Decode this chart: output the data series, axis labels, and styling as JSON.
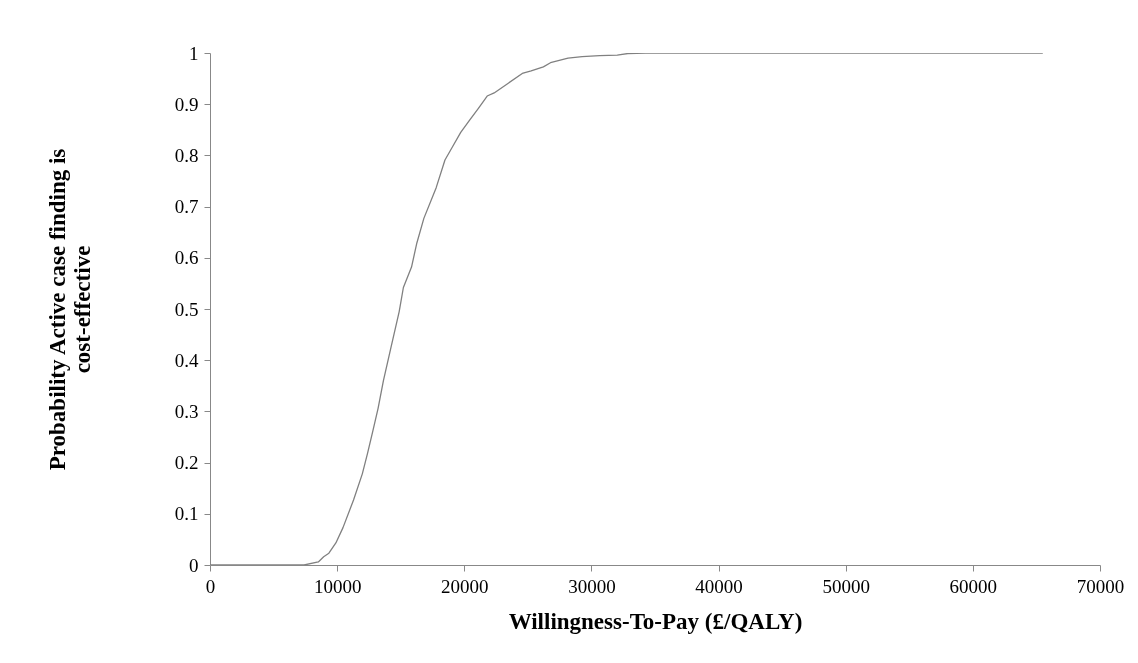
{
  "chart_data": {
    "type": "line",
    "xlabel": "Willingness-To-Pay (£/QALY)",
    "ylabel": "Probability Active case finding is\ncost-effective",
    "x": [
      0,
      7400,
      8520,
      8940,
      9350,
      9900,
      10460,
      11290,
      11980,
      12390,
      12810,
      13220,
      13640,
      14190,
      14880,
      15210,
      15850,
      16270,
      16820,
      17790,
      18480,
      19030,
      19720,
      20420,
      21110,
      21800,
      22350,
      23460,
      24560,
      25260,
      26220,
      26780,
      28160,
      29270,
      30650,
      32030,
      32860,
      34250,
      65500
    ],
    "series": [
      {
        "color": "#808080",
        "values": [
          0,
          0,
          0.006,
          0.016,
          0.023,
          0.043,
          0.073,
          0.127,
          0.178,
          0.218,
          0.262,
          0.306,
          0.36,
          0.42,
          0.495,
          0.542,
          0.582,
          0.629,
          0.677,
          0.737,
          0.791,
          0.815,
          0.845,
          0.869,
          0.892,
          0.916,
          0.922,
          0.941,
          0.96,
          0.965,
          0.973,
          0.981,
          0.99,
          0.993,
          0.995,
          0.996,
          0.999,
          1,
          1
        ]
      }
    ],
    "xlim": [
      0,
      70000
    ],
    "xticks": [
      0,
      10000,
      20000,
      30000,
      40000,
      50000,
      60000,
      70000
    ],
    "ylim": [
      0,
      1
    ],
    "yticks": [
      0,
      0.1,
      0.2,
      0.3,
      0.4,
      0.5,
      0.6,
      0.7,
      0.8,
      0.9,
      1
    ],
    "grid": false,
    "marker": "none",
    "line_style": "solid"
  }
}
